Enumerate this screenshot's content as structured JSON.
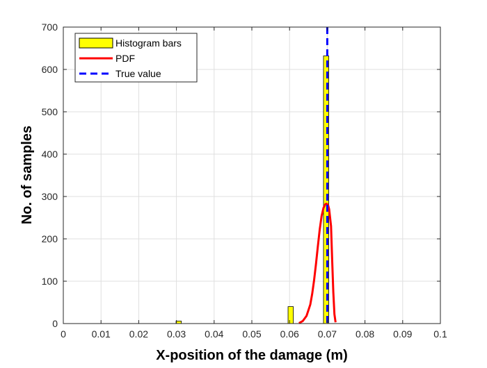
{
  "chart_data": {
    "type": "bar",
    "title": "",
    "xlabel": "X-position of the damage (m)",
    "ylabel": "No. of samples",
    "xlim": [
      0,
      0.1
    ],
    "ylim": [
      0,
      700
    ],
    "x_ticks": [
      0,
      0.01,
      0.02,
      0.03,
      0.04,
      0.05,
      0.06,
      0.07,
      0.08,
      0.09,
      0.1
    ],
    "x_tick_labels": [
      "0",
      "0.01",
      "0.02",
      "0.03",
      "0.04",
      "0.05",
      "0.06",
      "0.07",
      "0.08",
      "0.09",
      "0.1"
    ],
    "y_ticks": [
      0,
      100,
      200,
      300,
      400,
      500,
      600,
      700
    ],
    "y_tick_labels": [
      "0",
      "100",
      "200",
      "300",
      "400",
      "500",
      "600",
      "700"
    ],
    "grid": true,
    "legend_position": "top-left",
    "series": [
      {
        "name": "Histogram bars",
        "kind": "histogram",
        "color": "#ffff00",
        "edge_color": "#000000",
        "bin_width": 0.0014,
        "bins": [
          {
            "center": 0.0306,
            "count": 6
          },
          {
            "center": 0.0603,
            "count": 40
          },
          {
            "center": 0.0697,
            "count": 632
          }
        ]
      },
      {
        "name": "PDF",
        "kind": "line",
        "color": "#ff0000",
        "points": [
          [
            0.0625,
            1
          ],
          [
            0.0635,
            6
          ],
          [
            0.0645,
            18
          ],
          [
            0.0655,
            45
          ],
          [
            0.066,
            70
          ],
          [
            0.0665,
            102
          ],
          [
            0.067,
            140
          ],
          [
            0.0675,
            182
          ],
          [
            0.068,
            222
          ],
          [
            0.0685,
            254
          ],
          [
            0.069,
            273
          ],
          [
            0.0695,
            282
          ],
          [
            0.0698,
            283
          ],
          [
            0.0702,
            280
          ],
          [
            0.0705,
            270
          ],
          [
            0.071,
            230
          ],
          [
            0.0713,
            150
          ],
          [
            0.0716,
            75
          ],
          [
            0.0719,
            22
          ],
          [
            0.0722,
            3
          ]
        ]
      },
      {
        "name": "True value",
        "kind": "vline",
        "color": "#0000ff",
        "dash": "dashed",
        "x": 0.07
      }
    ]
  }
}
